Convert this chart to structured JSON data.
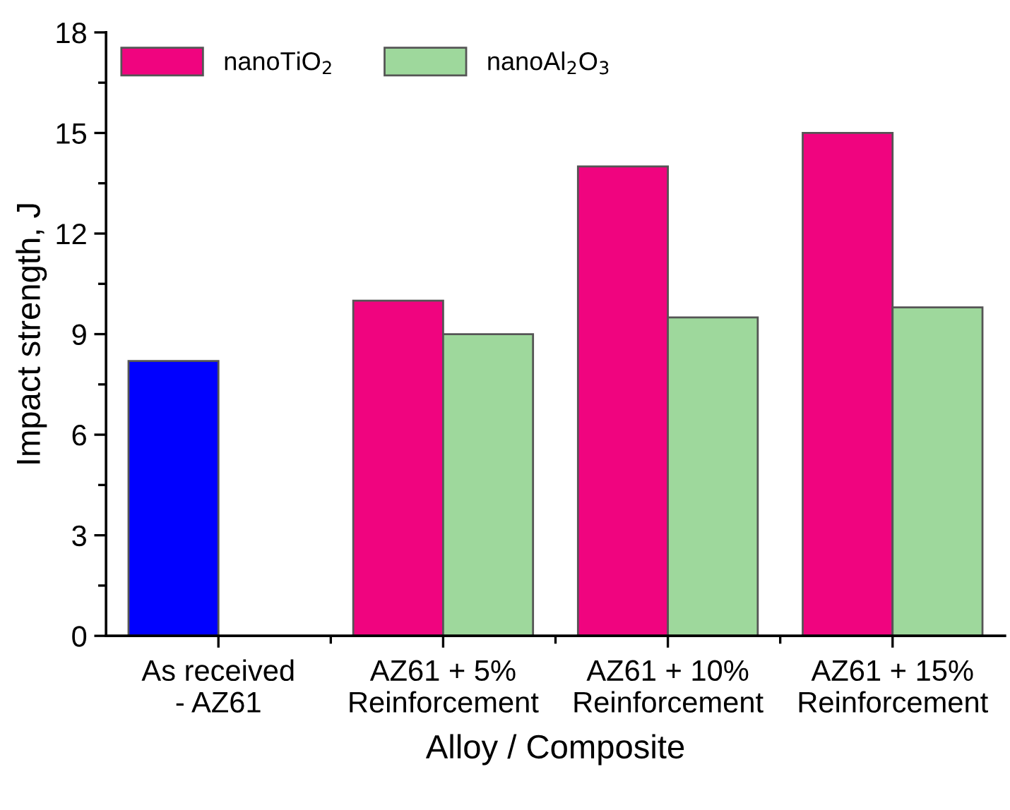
{
  "chart_data": {
    "type": "bar",
    "xlabel": "Alloy / Composite",
    "ylabel": "Impact strength, J",
    "categories": [
      "As received\n- AZ61",
      "AZ61 + 5%\nReinforcement",
      "AZ61 + 10%\nReinforcement",
      "AZ61 + 15%\nReinforcement"
    ],
    "series": [
      {
        "name": "nanoTiO$_{2}$",
        "color": "#f0047f",
        "colors": [
          "#0000ff",
          "#f0047f",
          "#f0047f",
          "#f0047f"
        ],
        "values": [
          8.2,
          10,
          14,
          15
        ]
      },
      {
        "name": "nanoAl$_{2}$O$_{3}$",
        "color": "#9ed89c",
        "values": [
          null,
          9,
          9.5,
          9.8
        ]
      }
    ],
    "ylim": [
      0,
      18
    ],
    "yticks": [
      0,
      3,
      6,
      9,
      12,
      15,
      18
    ],
    "grid": false,
    "legend": "top left"
  }
}
